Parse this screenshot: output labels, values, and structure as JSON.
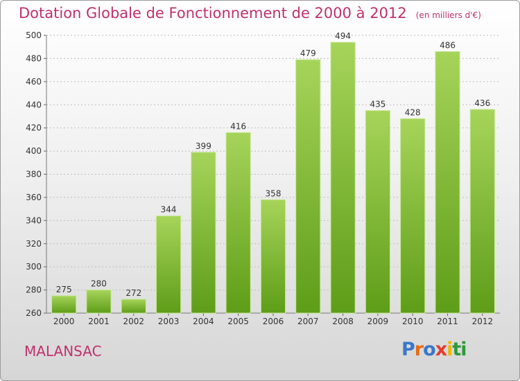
{
  "title": "Dotation Globale de Fonctionnement de 2000 à 2012",
  "unit": "(en milliers d'€)",
  "commune": "MALANSAC",
  "logo": {
    "text": "Proxiti",
    "colors": [
      "#3a78c8",
      "#e86a1a",
      "#3a78c8",
      "#e63c2e",
      "#f0b400",
      "#2e9a3c",
      "#2e9a3c"
    ]
  },
  "colors": {
    "bar_top": "#a6d45a",
    "bar_bottom": "#5e9d18",
    "title": "#c0306e",
    "grid": "#bdbdbd"
  },
  "chart_data": {
    "type": "bar",
    "categories": [
      "2000",
      "2001",
      "2002",
      "2003",
      "2004",
      "2005",
      "2006",
      "2007",
      "2008",
      "2009",
      "2010",
      "2011",
      "2012"
    ],
    "values": [
      275,
      280,
      272,
      344,
      399,
      416,
      358,
      479,
      494,
      435,
      428,
      486,
      436
    ],
    "ylim": [
      260,
      500
    ],
    "yticks": [
      260,
      280,
      300,
      320,
      340,
      360,
      380,
      400,
      420,
      440,
      460,
      480,
      500
    ],
    "grid": true
  }
}
